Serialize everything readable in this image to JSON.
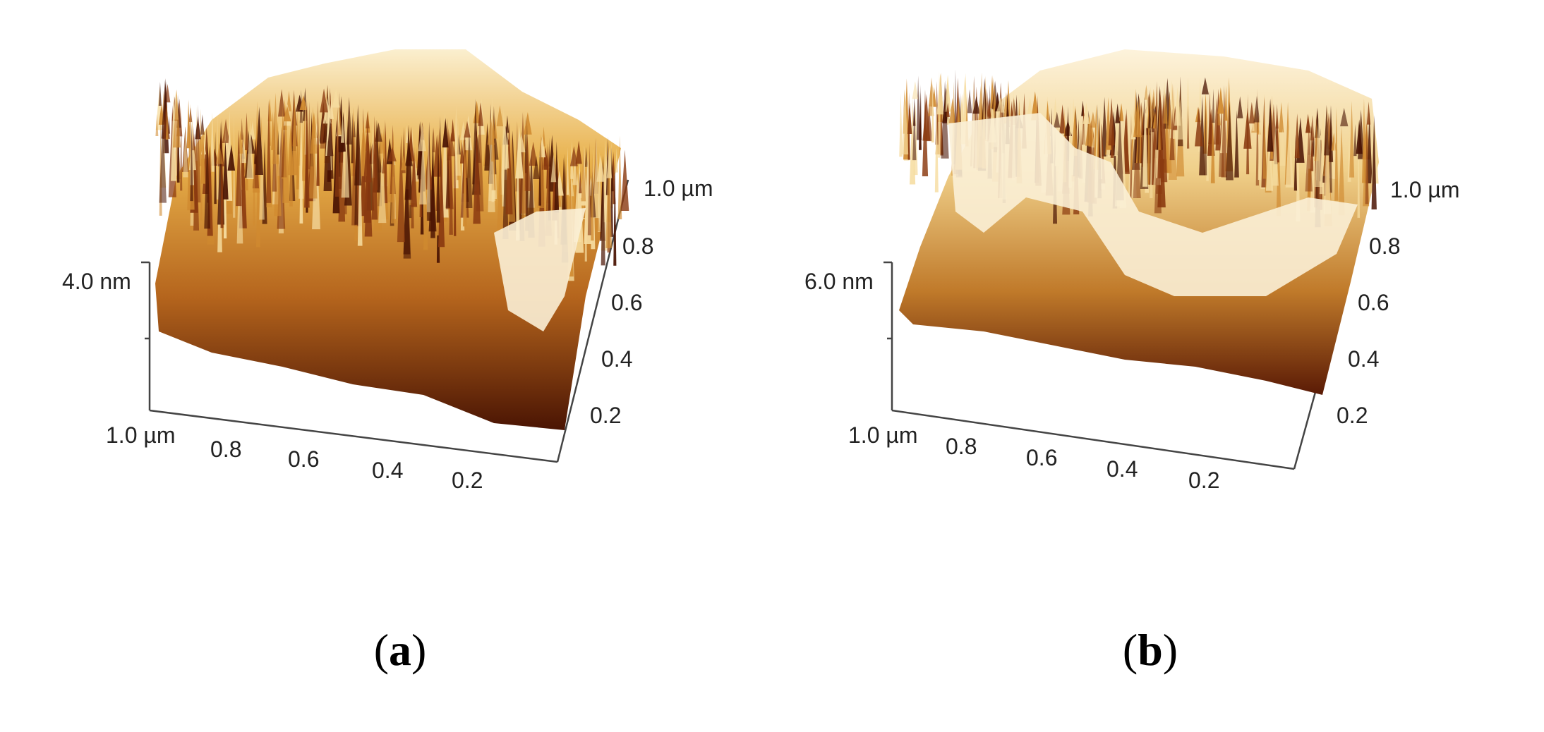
{
  "figure": {
    "panels": [
      {
        "id": "a",
        "caption_open": "(",
        "caption_letter": "a",
        "caption_close": ")",
        "z_label": "4.0 nm",
        "x_ticks": [
          "1.0 µm",
          "0.8",
          "0.6",
          "0.4",
          "0.2"
        ],
        "y_ticks": [
          "1.0 µm",
          "0.8",
          "0.6",
          "0.4",
          "0.2"
        ],
        "surface_description_color": "#b5651d"
      },
      {
        "id": "b",
        "caption_open": "(",
        "caption_letter": "b",
        "caption_close": ")",
        "z_label": "6.0 nm",
        "x_ticks": [
          "1.0 µm",
          "0.8",
          "0.6",
          "0.4",
          "0.2"
        ],
        "y_ticks": [
          "1.0 µm",
          "0.8",
          "0.6",
          "0.4",
          "0.2"
        ],
        "surface_description_color": "#d9a860"
      }
    ],
    "colors": {
      "dark": "#5a1a05",
      "mid": "#b5651d",
      "light": "#e8b04a",
      "highlight": "#fbefcf",
      "axis": "#444444"
    }
  }
}
